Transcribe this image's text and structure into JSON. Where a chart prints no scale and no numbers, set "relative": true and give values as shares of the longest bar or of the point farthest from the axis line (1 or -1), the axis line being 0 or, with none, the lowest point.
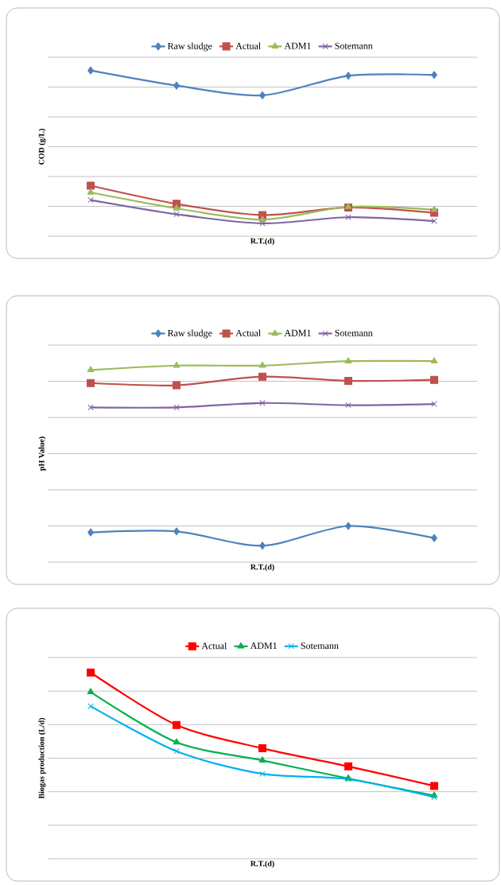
{
  "chart_data": [
    {
      "type": "line",
      "relative": true,
      "ylabel": "COD (g/L)",
      "xlabel": "R.T.(d)",
      "categories": [
        null,
        null,
        null,
        null,
        null
      ],
      "grid": "y",
      "legend": "top",
      "series": [
        {
          "name": "Raw sludge",
          "color": "#4f81bd",
          "marker": "diamond",
          "values": [
            1,
            0.909,
            0.85,
            0.968,
            0.973
          ]
        },
        {
          "name": "Actual",
          "color": "#c0504d",
          "marker": "square",
          "values": [
            0.305,
            0.195,
            0.127,
            0.173,
            0.141
          ]
        },
        {
          "name": "ADM1",
          "color": "#9bbb59",
          "marker": "triangle",
          "values": [
            0.264,
            0.168,
            0.1,
            0.177,
            0.159
          ]
        },
        {
          "name": "Sotemann",
          "color": "#8064a2",
          "marker": "cross",
          "values": [
            0.218,
            0.132,
            0.077,
            0.114,
            0.091
          ]
        }
      ]
    },
    {
      "type": "line",
      "relative": true,
      "ylabel": "pH Value)",
      "xlabel": "R.T.(d)",
      "categories": [
        null,
        null,
        null,
        null,
        null
      ],
      "grid": "y",
      "legend": "top",
      "series": [
        {
          "name": "Raw sludge",
          "color": "#4f81bd",
          "marker": "diamond",
          "values": [
            0.148,
            0.153,
            0.082,
            0.18,
            0.12
          ]
        },
        {
          "name": "Actual",
          "color": "#c0504d",
          "marker": "square",
          "values": [
            0.891,
            0.88,
            0.923,
            0.902,
            0.907
          ]
        },
        {
          "name": "ADM1",
          "color": "#9bbb59",
          "marker": "triangle",
          "values": [
            0.956,
            0.978,
            0.978,
            1,
            1
          ]
        },
        {
          "name": "Sotemann",
          "color": "#8064a2",
          "marker": "cross",
          "values": [
            0.77,
            0.77,
            0.792,
            0.781,
            0.787
          ]
        }
      ]
    },
    {
      "type": "line",
      "relative": true,
      "ylabel": "Biogas production (L/d)",
      "xlabel": "R.T.(d)",
      "categories": [
        null,
        null,
        null,
        null,
        null
      ],
      "grid": "y",
      "legend": "top",
      "series": [
        {
          "name": "Actual",
          "color": "#ff0000",
          "marker": "square",
          "values": [
            1,
            0.718,
            0.593,
            0.496,
            0.391
          ]
        },
        {
          "name": "ADM1",
          "color": "#00b050",
          "marker": "triangle",
          "values": [
            0.895,
            0.625,
            0.528,
            0.431,
            0.339
          ]
        },
        {
          "name": "Sotemann",
          "color": "#00b0f0",
          "marker": "cross",
          "values": [
            0.819,
            0.577,
            0.456,
            0.427,
            0.331
          ]
        }
      ]
    }
  ]
}
